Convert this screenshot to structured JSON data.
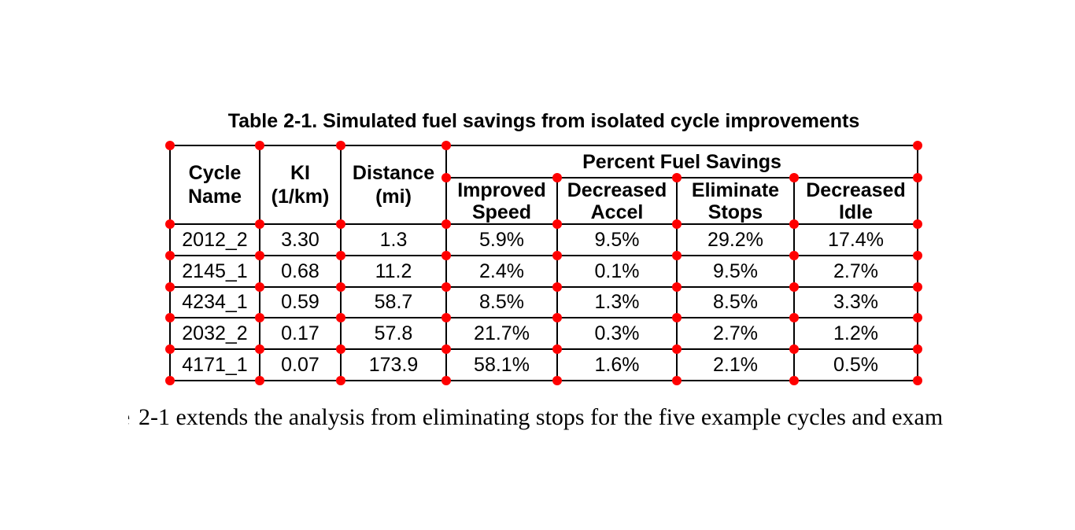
{
  "title": "Table 2-1. Simulated fuel savings from isolated cycle improvements",
  "table": {
    "header": {
      "cycle_name": "Cycle\nName",
      "ki": "KI\n(1/km)",
      "distance": "Distance\n(mi)",
      "group": "Percent Fuel Savings",
      "sub": [
        "Improved\nSpeed",
        "Decreased\nAccel",
        "Eliminate\nStops",
        "Decreased\nIdle"
      ]
    },
    "rows": [
      [
        "2012_2",
        "3.30",
        "1.3",
        "5.9%",
        "9.5%",
        "29.2%",
        "17.4%"
      ],
      [
        "2145_1",
        "0.68",
        "11.2",
        "2.4%",
        "0.1%",
        "9.5%",
        "2.7%"
      ],
      [
        "4234_1",
        "0.59",
        "58.7",
        "8.5%",
        "1.3%",
        "8.5%",
        "3.3%"
      ],
      [
        "2032_2",
        "0.17",
        "57.8",
        "21.7%",
        "0.3%",
        "2.7%",
        "1.2%"
      ],
      [
        "4171_1",
        "0.07",
        "173.9",
        "58.1%",
        "1.6%",
        "2.1%",
        "0.5%"
      ]
    ]
  },
  "annotation": {
    "marker_color": "#ff0000",
    "line_color": "#000000"
  },
  "paragraph": {
    "clipped_word": "Table",
    "text": "2-1 extends the analysis from eliminating stops for the five example cycles and exam"
  }
}
